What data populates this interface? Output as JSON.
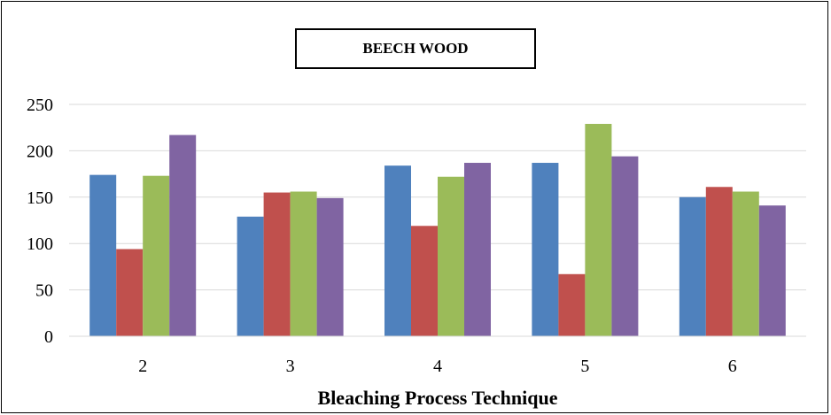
{
  "chart_data": {
    "type": "bar",
    "title": "BEECH WOOD",
    "xlabel": "Bleaching Process Technique",
    "ylabel": "",
    "categories": [
      "2",
      "3",
      "4",
      "5",
      "6"
    ],
    "yticks": [
      "0",
      "50",
      "100",
      "150",
      "200",
      "250"
    ],
    "ylim": [
      0,
      250
    ],
    "grid": true,
    "legend": "none",
    "series": [
      {
        "color": "#4F81BD",
        "values": [
          174,
          129,
          184,
          187,
          150
        ]
      },
      {
        "color": "#C0504D",
        "values": [
          94,
          155,
          119,
          67,
          161
        ]
      },
      {
        "color": "#9BBB59",
        "values": [
          173,
          156,
          172,
          229,
          156
        ]
      },
      {
        "color": "#8064A2",
        "values": [
          217,
          149,
          187,
          194,
          141
        ]
      }
    ]
  }
}
